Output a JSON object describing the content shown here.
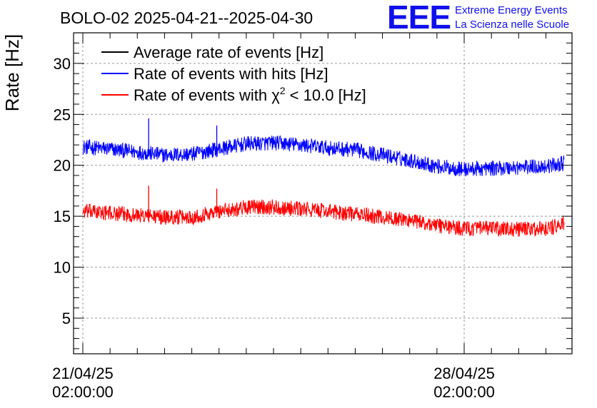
{
  "logo": {
    "mark": "EEE",
    "line1": "Extreme Energy Events",
    "line2": "La Scienza nelle Scuole",
    "color": "#1010ee"
  },
  "chart_data": {
    "type": "line",
    "title": "BOLO-02 2025-04-21--2025-04-30",
    "ylabel": "Rate [Hz]",
    "xlabel": "",
    "ylim": [
      1.5,
      33
    ],
    "yticks": [
      5,
      10,
      15,
      20,
      25,
      30
    ],
    "xlim": [
      "2025-04-20 21:55",
      "2025-04-30 01:30"
    ],
    "xticks": [
      {
        "at": "2025-04-21 02:00",
        "date": "21/04/25",
        "time": "02:00:00"
      },
      {
        "at": "2025-04-28 02:00",
        "date": "28/04/25",
        "time": "02:00:00"
      }
    ],
    "grid": true,
    "legend_placement": "top-left",
    "legend": [
      {
        "label": "Average rate of events [Hz]",
        "color": "#000000"
      },
      {
        "label": "Rate of events with hits [Hz]",
        "color": "#0000ff"
      },
      {
        "label": "Rate of events with χ² < 10.0 [Hz]",
        "label_main": "Rate of events with χ",
        "label_sup": "2",
        "label_tail": " < 10.0 [Hz]",
        "color": "#ff0000"
      }
    ],
    "series": [
      {
        "name": "Rate of events with hits [Hz]",
        "color": "#0000ff",
        "x": [
          "2025-04-21 02:00",
          "2025-04-21 14:00",
          "2025-04-22 02:00",
          "2025-04-22 14:00",
          "2025-04-23 02:00",
          "2025-04-23 14:00",
          "2025-04-24 02:00",
          "2025-04-24 14:00",
          "2025-04-25 02:00",
          "2025-04-25 14:00",
          "2025-04-26 02:00",
          "2025-04-26 14:00",
          "2025-04-27 02:00",
          "2025-04-27 14:00",
          "2025-04-28 02:00",
          "2025-04-28 14:00",
          "2025-04-29 02:00",
          "2025-04-29 14:00",
          "2025-04-29 22:00"
        ],
        "y": [
          21.8,
          21.6,
          21.3,
          21.0,
          21.1,
          21.6,
          22.1,
          22.2,
          22.0,
          21.7,
          21.5,
          21.0,
          20.5,
          19.9,
          19.6,
          19.7,
          19.8,
          19.9,
          20.2
        ],
        "noise": 0.75,
        "spikes": [
          {
            "x": "2025-04-22 07:00",
            "y": 24.6
          },
          {
            "x": "2025-04-23 13:00",
            "y": 23.9
          }
        ]
      },
      {
        "name": "Rate of events with χ² < 10.0 [Hz]",
        "color": "#ff0000",
        "x": [
          "2025-04-21 02:00",
          "2025-04-21 14:00",
          "2025-04-22 02:00",
          "2025-04-22 14:00",
          "2025-04-23 02:00",
          "2025-04-23 14:00",
          "2025-04-24 02:00",
          "2025-04-24 14:00",
          "2025-04-25 02:00",
          "2025-04-25 14:00",
          "2025-04-26 02:00",
          "2025-04-26 14:00",
          "2025-04-27 02:00",
          "2025-04-27 14:00",
          "2025-04-28 02:00",
          "2025-04-28 14:00",
          "2025-04-29 02:00",
          "2025-04-29 14:00",
          "2025-04-29 22:00"
        ],
        "y": [
          15.5,
          15.3,
          15.1,
          14.9,
          14.9,
          15.5,
          15.9,
          15.9,
          15.7,
          15.5,
          15.2,
          14.9,
          14.6,
          14.1,
          13.8,
          13.8,
          13.7,
          13.8,
          14.2
        ],
        "noise": 0.75,
        "spikes": [
          {
            "x": "2025-04-22 07:00",
            "y": 18.0
          },
          {
            "x": "2025-04-23 13:00",
            "y": 17.7
          }
        ]
      }
    ]
  }
}
